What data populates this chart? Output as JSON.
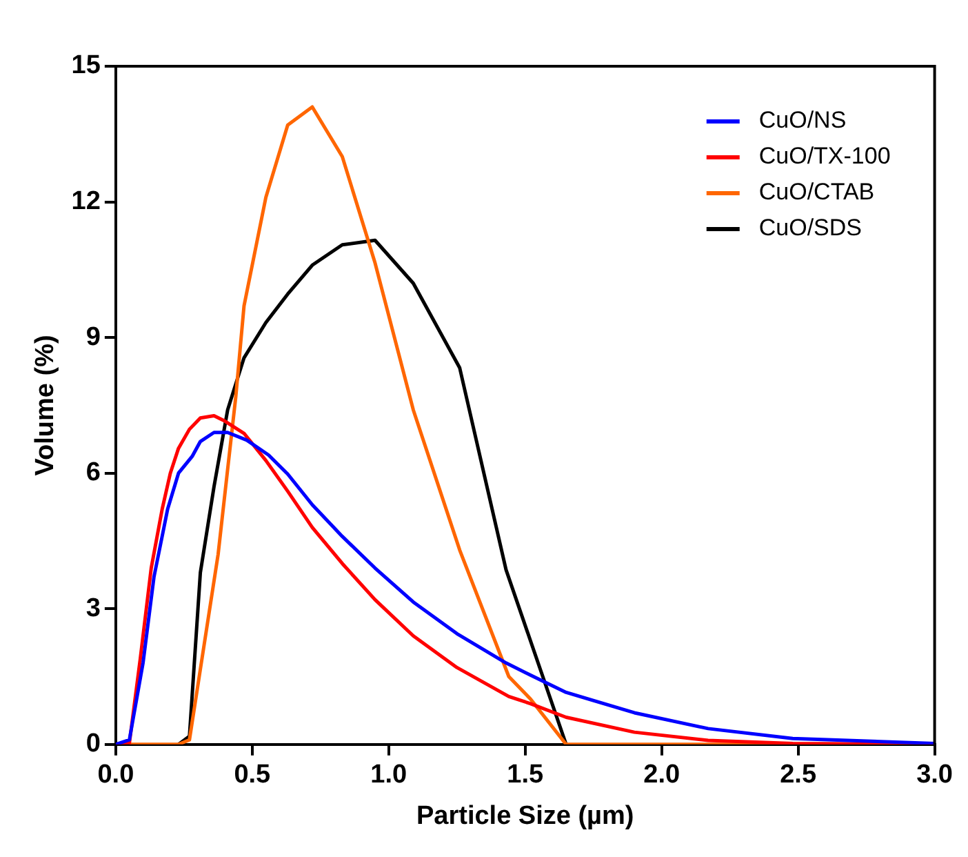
{
  "chart_data": {
    "type": "line",
    "xlabel": "Particle Size (µm)",
    "ylabel": "Volume (%)",
    "xlim": [
      0,
      3
    ],
    "xticks": [
      {
        "value": 0,
        "label": "0.0"
      },
      0.5,
      {
        "value": 1,
        "label": "1.0"
      },
      1.5,
      {
        "value": 2,
        "label": "2.0"
      },
      2.5,
      {
        "value": 3,
        "label": "3.0"
      }
    ],
    "ylim": [
      0,
      15
    ],
    "yticks": [
      0,
      3,
      6,
      9,
      12,
      15
    ],
    "grid": false,
    "legend": "top right",
    "marker": "none",
    "line_style": "solid",
    "series": [
      {
        "name": "CuO/NS",
        "color": "#0000ff",
        "x": [
          0,
          0.05,
          0.1,
          0.14,
          0.19,
          0.23,
          0.28,
          0.31,
          0.36,
          0.41,
          0.48,
          0.56,
          0.63,
          0.72,
          0.83,
          0.95,
          1.09,
          1.25,
          1.43,
          1.52,
          1.65,
          1.9,
          2.17,
          2.48,
          3.0
        ],
        "values": [
          0,
          0.1,
          1.8,
          3.7,
          5.2,
          6.0,
          6.37,
          6.7,
          6.9,
          6.9,
          6.73,
          6.4,
          5.98,
          5.3,
          4.6,
          3.9,
          3.15,
          2.45,
          1.8,
          1.53,
          1.15,
          0.7,
          0.35,
          0.13,
          0.02
        ]
      },
      {
        "name": "CuO/TX-100",
        "color": "#ff0000",
        "x": [
          0,
          0.05,
          0.09,
          0.13,
          0.17,
          0.2,
          0.23,
          0.27,
          0.31,
          0.36,
          0.4,
          0.47,
          0.55,
          0.63,
          0.72,
          0.83,
          0.95,
          1.09,
          1.25,
          1.44,
          1.52,
          1.65,
          1.9,
          2.17,
          2.48,
          3.0
        ],
        "values": [
          0,
          0.03,
          1.9,
          3.9,
          5.2,
          6.0,
          6.55,
          6.97,
          7.22,
          7.27,
          7.15,
          6.88,
          6.28,
          5.6,
          4.8,
          4.0,
          3.2,
          2.4,
          1.7,
          1.06,
          0.9,
          0.6,
          0.27,
          0.09,
          0.02,
          0
        ]
      },
      {
        "name": "CuO/CTAB",
        "color": "#ff6600",
        "x": [
          0.05,
          0.23,
          0.27,
          0.375,
          0.44,
          0.47,
          0.55,
          0.63,
          0.72,
          0.83,
          0.95,
          1.09,
          1.26,
          1.44,
          1.52,
          1.65,
          3.0
        ],
        "values": [
          0,
          0,
          0.1,
          4.2,
          7.7,
          9.7,
          12.1,
          13.7,
          14.1,
          13.0,
          10.65,
          7.4,
          4.3,
          1.5,
          1.0,
          0,
          0
        ]
      },
      {
        "name": "CuO/SDS",
        "color": "#000000",
        "x": [
          0.23,
          0.27,
          0.31,
          0.36,
          0.41,
          0.47,
          0.55,
          0.63,
          0.72,
          0.83,
          0.95,
          1.09,
          1.26,
          1.43,
          1.65
        ],
        "values": [
          0,
          0.18,
          3.8,
          5.7,
          7.4,
          8.55,
          9.33,
          9.96,
          10.6,
          11.05,
          11.15,
          10.2,
          8.33,
          3.86,
          0
        ]
      }
    ]
  }
}
